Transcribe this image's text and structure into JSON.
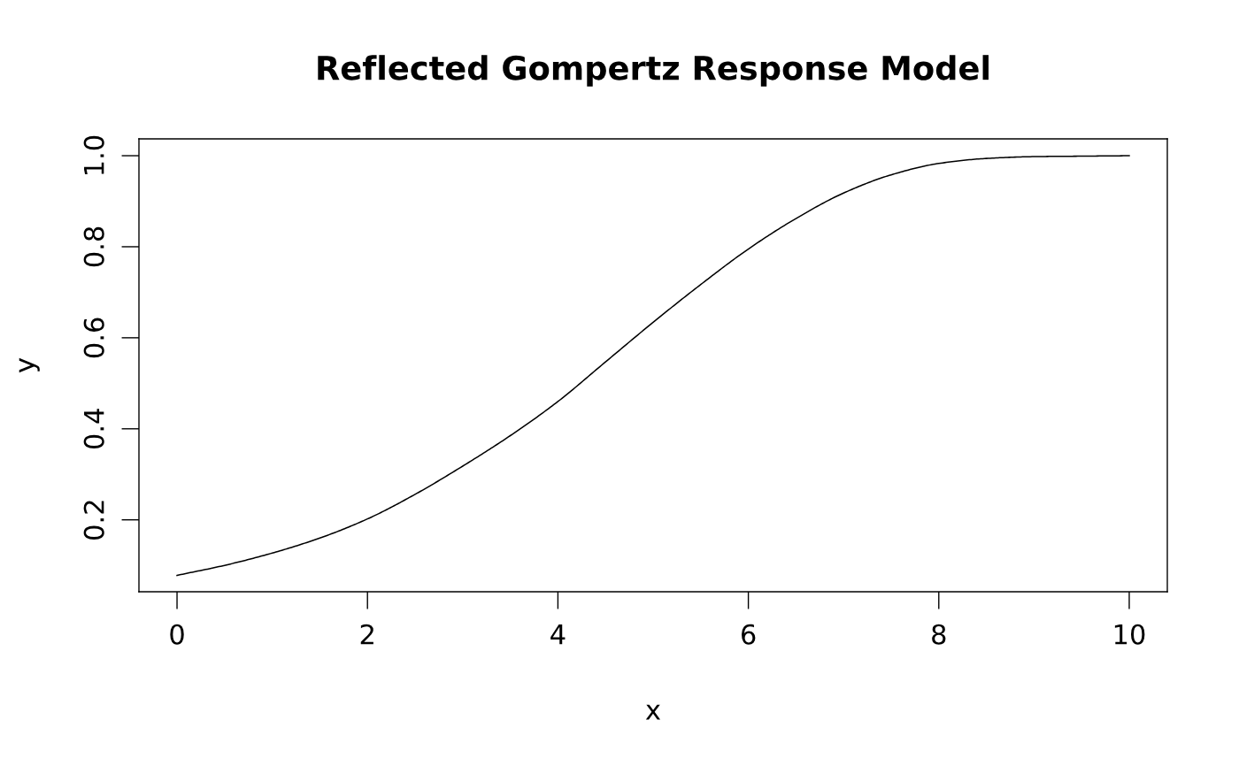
{
  "chart_data": {
    "type": "line",
    "title": "Reflected Gompertz Response Model",
    "xlabel": "x",
    "ylabel": "y",
    "x": [
      0,
      0.5,
      1,
      1.5,
      2,
      2.5,
      3,
      3.5,
      4,
      4.5,
      5,
      5.5,
      6,
      6.5,
      7,
      7.5,
      8,
      8.5,
      9,
      9.5,
      10
    ],
    "series": [
      {
        "color": "#000000",
        "values": [
          0.078,
          0.1,
          0.127,
          0.16,
          0.202,
          0.256,
          0.318,
          0.385,
          0.46,
          0.547,
          0.634,
          0.717,
          0.795,
          0.862,
          0.918,
          0.958,
          0.983,
          0.994,
          0.998,
          0.999,
          1.0
        ]
      }
    ],
    "xlim": [
      -0.4,
      10.4
    ],
    "ylim": [
      0.042,
      1.037
    ],
    "xticks": [
      0,
      2,
      4,
      6,
      8,
      10
    ],
    "yticks": [
      0.2,
      0.4,
      0.6,
      0.8,
      {
        "value": 1.0,
        "label": "1.0"
      }
    ],
    "line_style": "solid",
    "marker": "none",
    "grid": false
  }
}
